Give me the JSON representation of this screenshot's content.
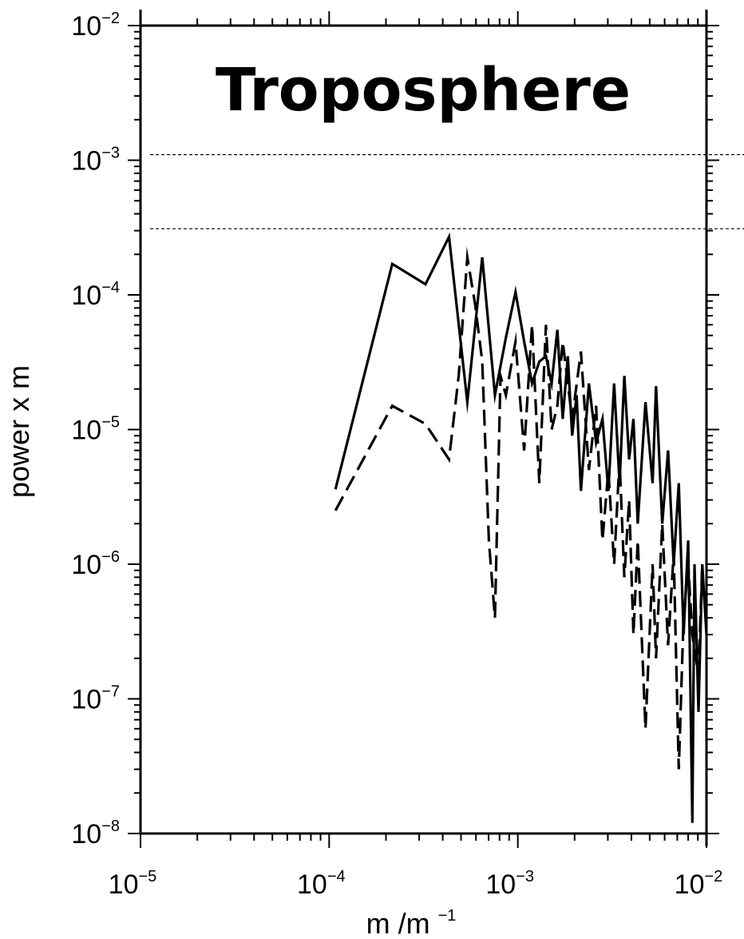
{
  "chart_data": {
    "type": "line",
    "title": "Troposphere",
    "xlabel": "m /m",
    "xlabel_exp": "−1",
    "ylabel": "power x m",
    "x_scale": "log",
    "y_scale": "log",
    "xlim": [
      1e-05,
      0.01
    ],
    "ylim": [
      1e-08,
      0.01
    ],
    "x_ticks": [
      {
        "base": "10",
        "exp": "−5",
        "value": 1e-05
      },
      {
        "base": "10",
        "exp": "−4",
        "value": 0.0001
      },
      {
        "base": "10",
        "exp": "−3",
        "value": 0.001
      },
      {
        "base": "10",
        "exp": "−2",
        "value": 0.01
      }
    ],
    "y_ticks": [
      {
        "base": "10",
        "exp": "−2",
        "value": 0.01
      },
      {
        "base": "10",
        "exp": "−3",
        "value": 0.001
      },
      {
        "base": "10",
        "exp": "−4",
        "value": 0.0001
      },
      {
        "base": "10",
        "exp": "−5",
        "value": 1e-05
      },
      {
        "base": "10",
        "exp": "−6",
        "value": 1e-06
      },
      {
        "base": "10",
        "exp": "−7",
        "value": 1e-07
      },
      {
        "base": "10",
        "exp": "−8",
        "value": 1e-08
      }
    ],
    "reference_lines": [
      0.0011,
      0.00031
    ],
    "grid": false,
    "series": [
      {
        "style": "solid",
        "x": [
          0.000108,
          0.000216,
          0.000324,
          0.000432,
          0.00054,
          0.000648,
          0.000756,
          0.000864,
          0.000972,
          0.00108,
          0.00119,
          0.0013,
          0.00141,
          0.00151,
          0.00162,
          0.00173,
          0.00184,
          0.00194,
          0.00205,
          0.00216,
          0.00238,
          0.0026,
          0.00281,
          0.00302,
          0.00324,
          0.00346,
          0.00367,
          0.00389,
          0.0041,
          0.00432,
          0.00475,
          0.00518,
          0.0054,
          0.00583,
          0.00626,
          0.0067,
          0.00713,
          0.00756,
          0.008,
          0.00842,
          0.00864,
          0.00907,
          0.0095,
          0.01
        ],
        "y": [
          3.6e-06,
          0.00017,
          0.00012,
          0.00027,
          1.6e-05,
          0.00019,
          1.8e-05,
          4.8e-05,
          0.000105,
          4.5e-05,
          2.2e-05,
          3.2e-05,
          3.5e-05,
          2.2e-05,
          5.5e-05,
          1.2e-05,
          3.5e-05,
          9e-06,
          1.8e-05,
          3.5e-06,
          2.2e-05,
          8e-06,
          1.2e-05,
          3.5e-06,
          2.2e-05,
          4e-06,
          2.5e-05,
          6e-06,
          1.2e-05,
          2e-06,
          1.6e-05,
          4e-06,
          2.1e-05,
          2e-06,
          7e-06,
          1e-06,
          4e-06,
          3e-07,
          1.5e-06,
          1.2e-08,
          1e-06,
          8e-08,
          1e-06,
          3e-07
        ]
      },
      {
        "style": "dashed",
        "x": [
          0.000108,
          0.000216,
          0.000324,
          0.000432,
          0.000486,
          0.00054,
          0.000594,
          0.000648,
          0.000702,
          0.000756,
          0.00081,
          0.000864,
          0.000972,
          0.00108,
          0.00119,
          0.0013,
          0.00141,
          0.00151,
          0.00162,
          0.00173,
          0.00194,
          0.00216,
          0.00238,
          0.0026,
          0.00281,
          0.00302,
          0.00324,
          0.00346,
          0.00367,
          0.00389,
          0.0041,
          0.00432,
          0.00475,
          0.00518,
          0.0054,
          0.00583,
          0.00626,
          0.0067,
          0.00713,
          0.00756,
          0.008,
          0.00842,
          0.00907,
          0.0095
        ],
        "y": [
          2.5e-06,
          1.5e-05,
          1.1e-05,
          6e-06,
          2.5e-05,
          0.00019,
          8.5e-05,
          3.2e-05,
          1.5e-06,
          4e-07,
          2.5e-05,
          1.8e-05,
          4.5e-05,
          7e-06,
          6e-05,
          4e-06,
          6e-05,
          1e-05,
          1.5e-05,
          4.5e-05,
          1.2e-05,
          3.8e-05,
          5e-06,
          1.5e-05,
          1.5e-06,
          5e-06,
          1e-06,
          6e-06,
          8e-07,
          3e-06,
          3e-07,
          1.5e-06,
          6e-08,
          1e-06,
          2e-07,
          2e-06,
          2.5e-07,
          1.2e-06,
          3e-08,
          4e-07,
          1e-06,
          3e-07,
          1.5e-07,
          1e-06
        ]
      }
    ]
  }
}
